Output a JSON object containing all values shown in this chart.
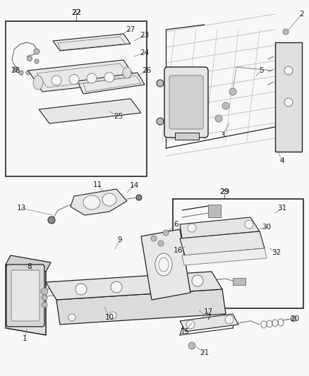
{
  "bg": "#f5f5f5",
  "fg": "#1a1a1a",
  "gray": "#888888",
  "lightgray": "#cccccc",
  "fig_w": 4.38,
  "fig_h": 5.33,
  "dpi": 100
}
